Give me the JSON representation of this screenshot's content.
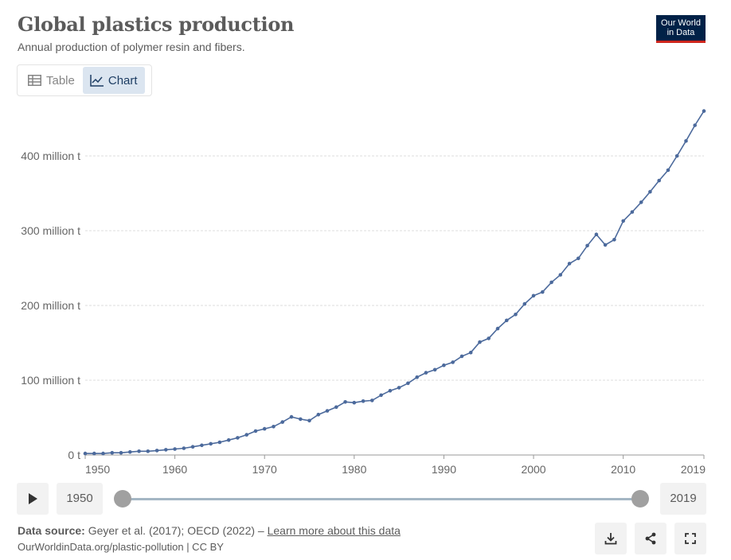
{
  "header": {
    "title": "Global plastics production",
    "subtitle": "Annual production of polymer resin and fibers.",
    "logo_line1": "Our World",
    "logo_line2": "in Data"
  },
  "tabs": [
    {
      "label": "Table",
      "icon": "table-icon",
      "active": false
    },
    {
      "label": "Chart",
      "icon": "line-chart-icon",
      "active": true
    }
  ],
  "timeline": {
    "start_label": "1950",
    "end_label": "2019"
  },
  "footer": {
    "source_prefix": "Data source:",
    "source_text": "Geyer et al. (2017); OECD (2022) –",
    "learn_more": "Learn more about this data",
    "url_text": "OurWorldinData.org/plastic-pollution | CC BY"
  },
  "colors": {
    "series": "#4c6a9c",
    "accent_logo": "#002147",
    "logo_underline": "#ce261e"
  },
  "chart_data": {
    "type": "line",
    "title": "Global plastics production",
    "subtitle": "Annual production of polymer resin and fibers.",
    "ylim": [
      0,
      460
    ],
    "xlim": [
      1950,
      2019
    ],
    "y_ticks": [
      {
        "value": 0,
        "label": "0 t"
      },
      {
        "value": 100,
        "label": "100 million t"
      },
      {
        "value": 200,
        "label": "200 million t"
      },
      {
        "value": 300,
        "label": "300 million t"
      },
      {
        "value": 400,
        "label": "400 million t"
      }
    ],
    "x_ticks": [
      "1950",
      "1960",
      "1970",
      "1980",
      "1990",
      "2000",
      "2010",
      "2019"
    ],
    "grid": "horizontal dashed",
    "series": [
      {
        "color": "#4c6a9c",
        "x": [
          1950,
          1951,
          1952,
          1953,
          1954,
          1955,
          1956,
          1957,
          1958,
          1959,
          1960,
          1961,
          1962,
          1963,
          1964,
          1965,
          1966,
          1967,
          1968,
          1969,
          1970,
          1971,
          1972,
          1973,
          1974,
          1975,
          1976,
          1977,
          1978,
          1979,
          1980,
          1981,
          1982,
          1983,
          1984,
          1985,
          1986,
          1987,
          1988,
          1989,
          1990,
          1991,
          1992,
          1993,
          1994,
          1995,
          1996,
          1997,
          1998,
          1999,
          2000,
          2001,
          2002,
          2003,
          2004,
          2005,
          2006,
          2007,
          2008,
          2009,
          2010,
          2011,
          2012,
          2013,
          2014,
          2015,
          2016,
          2017,
          2018,
          2019
        ],
        "values": [
          2,
          2,
          2,
          3,
          3,
          4,
          5,
          5,
          6,
          7,
          8,
          9,
          11,
          13,
          15,
          17,
          20,
          23,
          27,
          32,
          35,
          38,
          44,
          51,
          48,
          46,
          54,
          59,
          64,
          71,
          70,
          72,
          73,
          80,
          86,
          90,
          96,
          104,
          110,
          114,
          120,
          124,
          132,
          137,
          151,
          156,
          169,
          180,
          188,
          202,
          213,
          218,
          231,
          241,
          256,
          263,
          280,
          295,
          281,
          288,
          313,
          325,
          338,
          352,
          367,
          381,
          400,
          420,
          441,
          460
        ]
      }
    ]
  }
}
